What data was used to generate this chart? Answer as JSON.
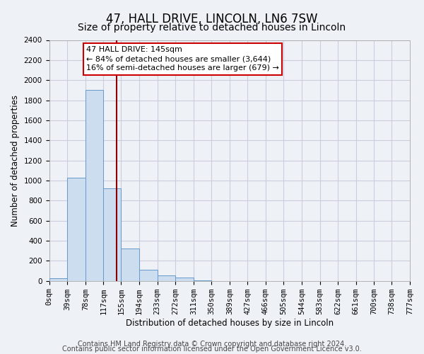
{
  "title": "47, HALL DRIVE, LINCOLN, LN6 7SW",
  "subtitle": "Size of property relative to detached houses in Lincoln",
  "xlabel": "Distribution of detached houses by size in Lincoln",
  "ylabel": "Number of detached properties",
  "bin_edges": [
    0,
    39,
    78,
    117,
    155,
    194,
    233,
    272,
    311,
    350,
    389,
    427,
    466,
    505,
    544,
    583,
    622,
    661,
    700,
    738,
    777
  ],
  "bar_heights": [
    25,
    1025,
    1900,
    920,
    320,
    110,
    55,
    30,
    5,
    0,
    0,
    0,
    0,
    0,
    0,
    0,
    0,
    0,
    0,
    0
  ],
  "bar_color": "#ccddf0",
  "bar_edge_color": "#6699cc",
  "property_size": 145,
  "vline_color": "#8b0000",
  "annotation_line1": "47 HALL DRIVE: 145sqm",
  "annotation_line2": "← 84% of detached houses are smaller (3,644)",
  "annotation_line3": "16% of semi-detached houses are larger (679) →",
  "annotation_box_color": "white",
  "annotation_box_edge_color": "#cc0000",
  "ylim": [
    0,
    2400
  ],
  "yticks": [
    0,
    200,
    400,
    600,
    800,
    1000,
    1200,
    1400,
    1600,
    1800,
    2000,
    2200,
    2400
  ],
  "xtick_labels": [
    "0sqm",
    "39sqm",
    "78sqm",
    "117sqm",
    "155sqm",
    "194sqm",
    "233sqm",
    "272sqm",
    "311sqm",
    "350sqm",
    "389sqm",
    "427sqm",
    "466sqm",
    "505sqm",
    "544sqm",
    "583sqm",
    "622sqm",
    "661sqm",
    "700sqm",
    "738sqm",
    "777sqm"
  ],
  "footer1": "Contains HM Land Registry data © Crown copyright and database right 2024.",
  "footer2": "Contains public sector information licensed under the Open Government Licence v3.0.",
  "bg_color": "#eef2f7",
  "plot_bg_color": "#eef2f7",
  "grid_color": "#ccccdd",
  "title_fontsize": 12,
  "subtitle_fontsize": 10,
  "label_fontsize": 8.5,
  "tick_fontsize": 7.5,
  "annotation_fontsize": 8,
  "footer_fontsize": 7
}
